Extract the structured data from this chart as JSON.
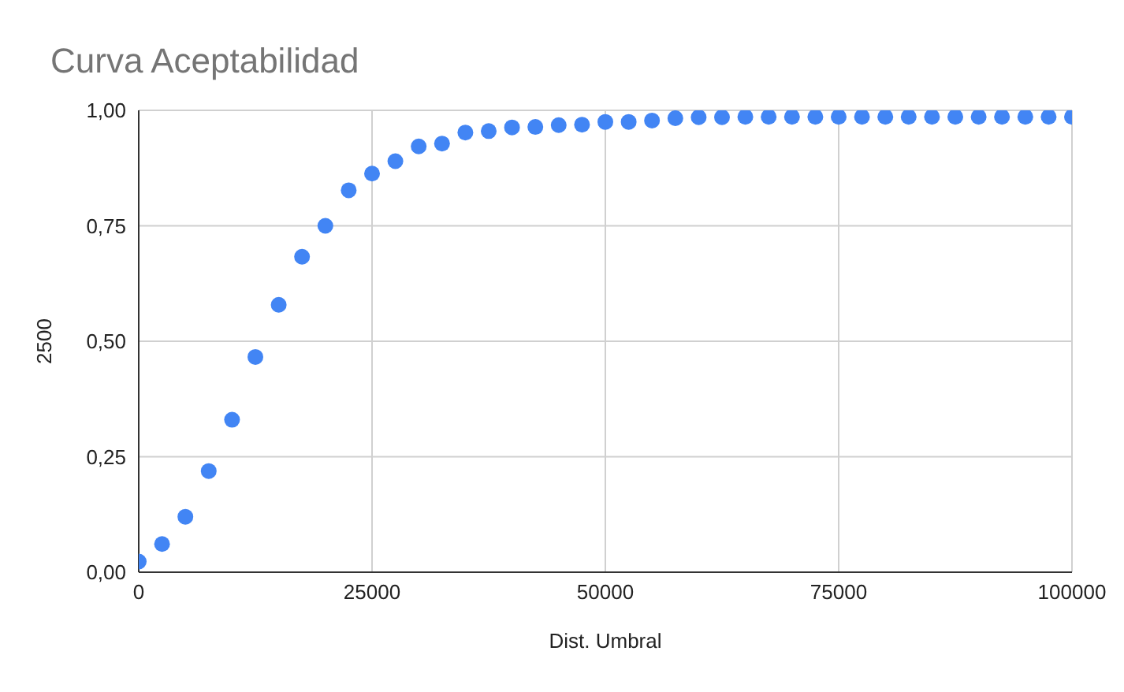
{
  "chart_data": {
    "type": "scatter",
    "title": "Curva Aceptabilidad",
    "xlabel": "Dist. Umbral",
    "ylabel": "2500",
    "x": [
      0,
      2500,
      5000,
      7500,
      10000,
      12500,
      15000,
      17500,
      20000,
      22500,
      25000,
      27500,
      30000,
      32500,
      35000,
      37500,
      40000,
      42500,
      45000,
      47500,
      50000,
      52500,
      55000,
      57500,
      60000,
      62500,
      65000,
      67500,
      70000,
      72500,
      75000,
      77500,
      80000,
      82500,
      85000,
      87500,
      90000,
      92500,
      95000,
      97500,
      100000
    ],
    "series": [
      {
        "color": "#4285f4",
        "values": [
          0.023,
          0.061,
          0.12,
          0.219,
          0.33,
          0.466,
          0.579,
          0.683,
          0.75,
          0.827,
          0.863,
          0.89,
          0.922,
          0.928,
          0.952,
          0.955,
          0.963,
          0.964,
          0.968,
          0.969,
          0.975,
          0.975,
          0.978,
          0.983,
          0.985,
          0.985,
          0.986,
          0.986,
          0.986,
          0.986,
          0.986,
          0.986,
          0.986,
          0.986,
          0.986,
          0.986,
          0.986,
          0.986,
          0.986,
          0.986,
          0.986
        ]
      }
    ],
    "xlim": [
      0,
      100000
    ],
    "xticks": [
      0,
      25000,
      50000,
      75000,
      100000
    ],
    "ylim": [
      0,
      1
    ],
    "yticks": [
      {
        "value": 0,
        "label": "0,00"
      },
      {
        "value": 0.25,
        "label": "0,25"
      },
      {
        "value": 0.5,
        "label": "0,50"
      },
      {
        "value": 0.75,
        "label": "0,75"
      },
      {
        "value": 1,
        "label": "1,00"
      }
    ],
    "grid": true,
    "legend": false,
    "marker": "circle"
  }
}
